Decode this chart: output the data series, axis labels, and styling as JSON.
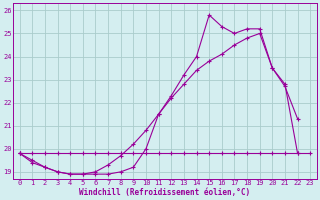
{
  "xlabel": "Windchill (Refroidissement éolien,°C)",
  "background_color": "#d4eef0",
  "grid_color": "#aacccc",
  "line_color": "#990099",
  "xlim": [
    -0.5,
    23.5
  ],
  "ylim": [
    18.7,
    26.3
  ],
  "yticks": [
    19,
    20,
    21,
    22,
    23,
    24,
    25,
    26
  ],
  "xticks": [
    0,
    1,
    2,
    3,
    4,
    5,
    6,
    7,
    8,
    9,
    10,
    11,
    12,
    13,
    14,
    15,
    16,
    17,
    18,
    19,
    20,
    21,
    22,
    23
  ],
  "line1_x": [
    0,
    1,
    2,
    3,
    4,
    5,
    6,
    7,
    8,
    9,
    10,
    11,
    12,
    13,
    14,
    15,
    16,
    17,
    18,
    19,
    20,
    21,
    22,
    23
  ],
  "line1_y": [
    19.8,
    19.8,
    19.8,
    19.8,
    19.8,
    19.8,
    19.8,
    19.8,
    19.8,
    19.8,
    19.8,
    19.8,
    19.8,
    19.8,
    19.8,
    19.8,
    19.8,
    19.8,
    19.8,
    19.8,
    19.8,
    19.8,
    19.8,
    19.8
  ],
  "line2_x": [
    0,
    1,
    2,
    3,
    4,
    5,
    6,
    7,
    8,
    9,
    10,
    11,
    12,
    13,
    14,
    15,
    16,
    17,
    18,
    19,
    20,
    21,
    22
  ],
  "line2_y": [
    19.8,
    19.4,
    19.2,
    19.0,
    18.9,
    18.9,
    18.9,
    18.9,
    19.0,
    19.2,
    20.0,
    21.5,
    22.3,
    23.2,
    24.0,
    25.8,
    25.3,
    25.0,
    25.2,
    25.2,
    23.5,
    22.8,
    19.8
  ],
  "line3_x": [
    0,
    1,
    2,
    3,
    4,
    5,
    6,
    7,
    8,
    9,
    10,
    11,
    12,
    13,
    14,
    15,
    16,
    17,
    18,
    19,
    20,
    21,
    22
  ],
  "line3_y": [
    19.8,
    19.5,
    19.2,
    19.0,
    18.9,
    18.9,
    19.0,
    19.3,
    19.7,
    20.2,
    20.8,
    21.5,
    22.2,
    22.8,
    23.4,
    23.8,
    24.1,
    24.5,
    24.8,
    25.0,
    23.5,
    22.7,
    21.3
  ]
}
